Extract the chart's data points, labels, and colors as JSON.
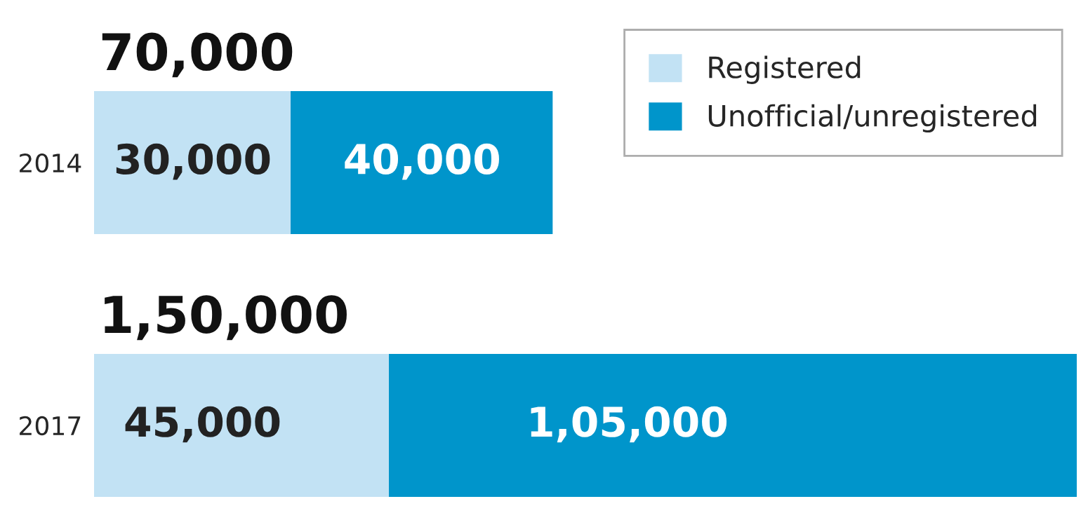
{
  "chart_data": {
    "type": "bar",
    "orientation": "horizontal",
    "stacked": true,
    "categories": [
      "2014",
      "2017"
    ],
    "series": [
      {
        "name": "Registered",
        "color": "#c2e2f4",
        "values": [
          30000,
          45000
        ],
        "value_labels": [
          "30,000",
          "45,000"
        ]
      },
      {
        "name": "Unofficial/unregistered",
        "color": "#0095cb",
        "values": [
          40000,
          105000
        ],
        "value_labels": [
          "40,000",
          "1,05,000"
        ]
      }
    ],
    "totals": [
      "70,000",
      "1,50,000"
    ],
    "legend": "top right",
    "tick_labels": "y",
    "grid": false
  }
}
